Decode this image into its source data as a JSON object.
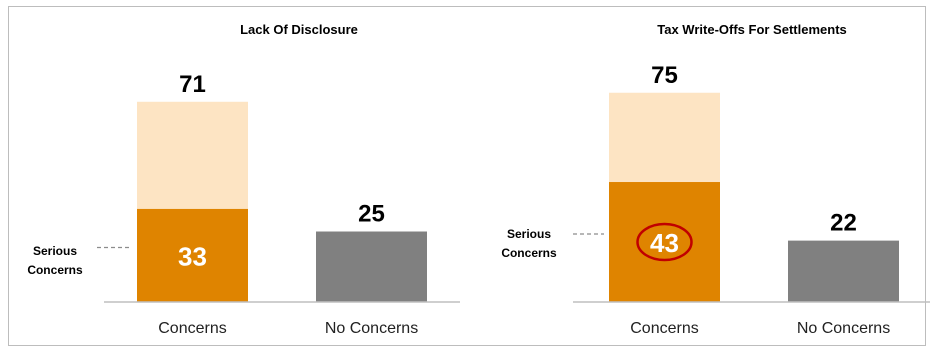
{
  "chart_data": [
    {
      "type": "bar",
      "title": "Lack Of Disclosure",
      "categories": [
        "Concerns",
        "No Concerns"
      ],
      "values": [
        71,
        25
      ],
      "sub_values": [
        33,
        null
      ],
      "sub_label": "Serious Concerns",
      "highlight_sub": false,
      "ylim": [
        0,
        80
      ],
      "colors": {
        "total": "#fde4c3",
        "sub": "#df8400",
        "other": "#808080",
        "axis": "#bfbfbf",
        "guide": "#8c8c8c"
      }
    },
    {
      "type": "bar",
      "title": "Tax Write-Offs For Settlements",
      "categories": [
        "Concerns",
        "No Concerns"
      ],
      "values": [
        75,
        22
      ],
      "sub_values": [
        43,
        null
      ],
      "sub_label": "Serious Concerns",
      "highlight_sub": true,
      "ylim": [
        0,
        80
      ],
      "colors": {
        "total": "#fde4c3",
        "sub": "#df8400",
        "other": "#808080",
        "axis": "#bfbfbf",
        "guide": "#8c8c8c",
        "highlight": "#c00000"
      }
    }
  ]
}
